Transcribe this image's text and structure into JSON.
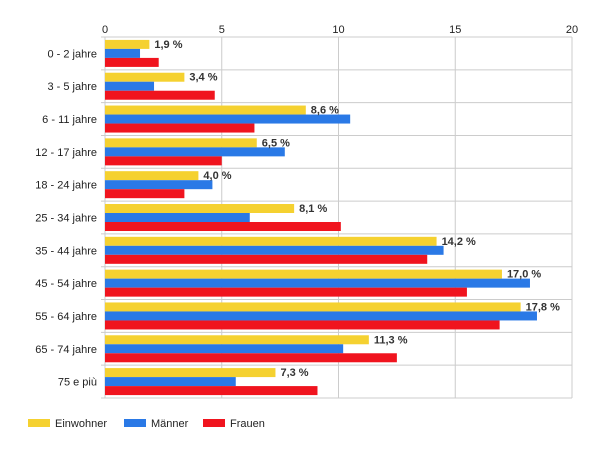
{
  "chart_data": {
    "type": "bar",
    "orientation": "horizontal",
    "categories": [
      "0 - 2 jahre",
      "3 - 5 jahre",
      "6 - 11 jahre",
      "12 - 17 jahre",
      "18 - 24 jahre",
      "25 - 34 jahre",
      "35 - 44 jahre",
      "45 - 54 jahre",
      "55 - 64 jahre",
      "65 - 74 jahre",
      "75 e più"
    ],
    "series": [
      {
        "name": "Einwohner",
        "color": "#f5d130",
        "values": [
          1.9,
          3.4,
          8.6,
          6.5,
          4.0,
          8.1,
          14.2,
          17.0,
          17.8,
          11.3,
          7.3
        ],
        "labels": [
          "1,9 %",
          "3,4 %",
          "8,6 %",
          "6,5 %",
          "4,0 %",
          "8,1 %",
          "14,2 %",
          "17,0 %",
          "17,8 %",
          "11,3 %",
          "7,3 %"
        ]
      },
      {
        "name": "Männer",
        "color": "#2a79e6",
        "values": [
          1.5,
          2.1,
          10.5,
          7.7,
          4.6,
          6.2,
          14.5,
          18.2,
          18.5,
          10.2,
          5.6
        ]
      },
      {
        "name": "Frauen",
        "color": "#f0141e",
        "values": [
          2.3,
          4.7,
          6.4,
          5.0,
          3.4,
          10.1,
          13.8,
          15.5,
          16.9,
          12.5,
          9.1
        ]
      }
    ],
    "xlim": [
      0,
      20
    ],
    "ticks": [
      "0",
      "5",
      "10",
      "15",
      "20"
    ],
    "grid": true,
    "legend_position": "bottom-left"
  }
}
